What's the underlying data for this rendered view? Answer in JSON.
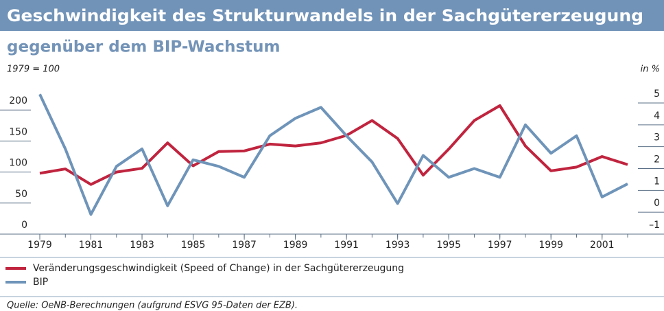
{
  "chart_data": {
    "type": "line",
    "title": "Geschwindigkeit des Strukturwandels in der Sachgütererzeugung",
    "subtitle": "gegenüber dem BIP-Wachstum",
    "y_label": "1979 = 100",
    "y2_label": "in %",
    "source": "Quelle: OeNB-Berechnungen (aufgrund ESVG 95-Daten der EZB).",
    "x": [
      1979,
      1980,
      1981,
      1982,
      1983,
      1984,
      1985,
      1986,
      1987,
      1988,
      1989,
      1990,
      1991,
      1992,
      1993,
      1994,
      1995,
      1996,
      1997,
      1998,
      1999,
      2000,
      2001,
      2002
    ],
    "xlim": [
      1979,
      2002
    ],
    "xticks": [
      1979,
      1981,
      1983,
      1985,
      1987,
      1989,
      1991,
      1993,
      1995,
      1997,
      1999,
      2001
    ],
    "ylim": [
      0,
      250
    ],
    "yticks": [
      0,
      50,
      100,
      150,
      200
    ],
    "y2lim": [
      -1,
      6.1
    ],
    "y2ticks": [
      {
        "value": -1,
        "label": "–1"
      },
      0,
      1,
      2,
      3,
      4,
      5
    ],
    "series": [
      {
        "name": "Veränderungsgeschwindigkeit (Speed of Change) in der Sachgütererzeugung",
        "color": "#c0243e",
        "axis": "y",
        "values": [
          98,
          105,
          80,
          100,
          106,
          147,
          110,
          133,
          134,
          145,
          142,
          147,
          159,
          183,
          154,
          95,
          137,
          183,
          207,
          142,
          102,
          108,
          125,
          112
        ]
      },
      {
        "name": "BIP",
        "color": "#6f94b9",
        "axis": "y2",
        "values": [
          5.4,
          2.9,
          -0.1,
          2.1,
          2.9,
          0.3,
          2.4,
          2.1,
          1.6,
          3.5,
          4.3,
          4.8,
          3.5,
          2.3,
          0.4,
          2.6,
          1.6,
          2.0,
          1.6,
          4.0,
          2.7,
          3.5,
          0.7,
          1.3
        ]
      }
    ]
  }
}
